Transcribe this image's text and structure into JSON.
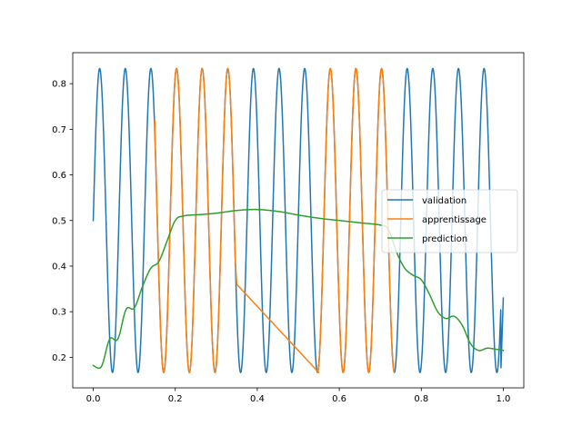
{
  "chart_data": {
    "type": "line",
    "title": "",
    "xlabel": "",
    "ylabel": "",
    "xlim": [
      -0.05,
      1.05
    ],
    "ylim": [
      0.133,
      0.868
    ],
    "x_ticks": [
      0.0,
      0.2,
      0.4,
      0.6,
      0.8,
      1.0
    ],
    "x_tick_labels": [
      "0.0",
      "0.2",
      "0.4",
      "0.6",
      "0.8",
      "1.0"
    ],
    "y_ticks": [
      0.2,
      0.3,
      0.4,
      0.5,
      0.6,
      0.7,
      0.8
    ],
    "y_tick_labels": [
      "0.2",
      "0.3",
      "0.4",
      "0.5",
      "0.6",
      "0.7",
      "0.8"
    ],
    "grid": false,
    "legend_position": "center-right",
    "series": [
      {
        "name": "validation",
        "color": "#1f77b4",
        "description_function": "0.5 + (1/3)*sin(2*pi*16*x)",
        "x": [
          0.0,
          0.0156,
          0.0469,
          0.0781,
          0.1094,
          0.1406,
          0.1719,
          0.2031,
          0.2344,
          0.2656,
          0.2969,
          0.3281,
          0.3594,
          0.3906,
          0.4219,
          0.4531,
          0.4844,
          0.5156,
          0.5469,
          0.5781,
          0.6094,
          0.6406,
          0.6719,
          0.7031,
          0.7344,
          0.7656,
          0.7969,
          0.8281,
          0.8594,
          0.8906,
          0.9219,
          0.9531,
          0.9844,
          1.0
        ],
        "y": [
          0.5,
          0.8333,
          0.1667,
          0.8333,
          0.1667,
          0.8333,
          0.1667,
          0.8333,
          0.1667,
          0.8333,
          0.1667,
          0.8333,
          0.1667,
          0.8333,
          0.1667,
          0.8333,
          0.1667,
          0.8333,
          0.1667,
          0.8333,
          0.1667,
          0.8333,
          0.1667,
          0.8333,
          0.1667,
          0.8333,
          0.1667,
          0.8333,
          0.1667,
          0.8333,
          0.1667,
          0.8333,
          0.1667,
          0.33
        ]
      },
      {
        "name": "apprentissage",
        "color": "#ff7f0e",
        "x": [
          0.15,
          0.1719,
          0.2031,
          0.2344,
          0.2656,
          0.2969,
          0.3281,
          0.35,
          0.55,
          0.5781,
          0.6094,
          0.6406,
          0.6719,
          0.7031,
          0.7344
        ],
        "y": [
          0.72,
          0.1667,
          0.8333,
          0.1667,
          0.8333,
          0.1667,
          0.8333,
          0.36,
          0.1667,
          0.8333,
          0.1667,
          0.8333,
          0.1667,
          0.8333,
          0.1667
        ]
      },
      {
        "name": "prediction",
        "color": "#2ca02c",
        "x": [
          0.0,
          0.02,
          0.04,
          0.06,
          0.08,
          0.1,
          0.12,
          0.14,
          0.16,
          0.18,
          0.2,
          0.22,
          0.26,
          0.3,
          0.35,
          0.4,
          0.45,
          0.5,
          0.55,
          0.6,
          0.65,
          0.7,
          0.72,
          0.74,
          0.76,
          0.78,
          0.8,
          0.82,
          0.84,
          0.86,
          0.88,
          0.9,
          0.92,
          0.94,
          0.96,
          0.98,
          1.0
        ],
        "y": [
          0.182,
          0.18,
          0.24,
          0.24,
          0.305,
          0.308,
          0.355,
          0.395,
          0.41,
          0.455,
          0.5,
          0.51,
          0.513,
          0.516,
          0.522,
          0.524,
          0.52,
          0.512,
          0.505,
          0.5,
          0.495,
          0.49,
          0.48,
          0.43,
          0.395,
          0.38,
          0.37,
          0.338,
          0.3,
          0.285,
          0.29,
          0.27,
          0.23,
          0.215,
          0.22,
          0.218,
          0.215
        ]
      }
    ]
  }
}
